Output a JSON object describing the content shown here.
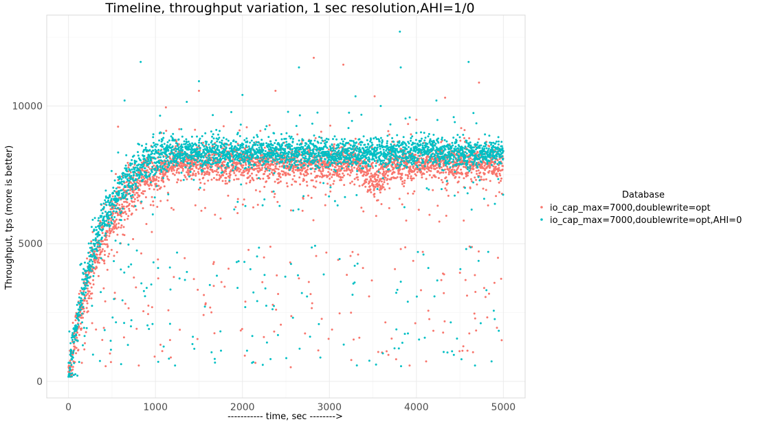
{
  "chart_data": {
    "type": "scatter",
    "title": "Timeline, throughput variation, 1 sec resolution,AHI=1/0",
    "xlabel": "----------- time, sec -------->",
    "ylabel": "Throughput, tps (more is better)",
    "xlim": [
      -250,
      5250
    ],
    "ylim": [
      -600,
      13300
    ],
    "x_ticks": [
      0,
      1000,
      2000,
      3000,
      4000,
      5000
    ],
    "y_ticks": [
      0,
      5000,
      10000
    ],
    "x_tick_labels": [
      "0",
      "1000",
      "2000",
      "3000",
      "4000",
      "5000"
    ],
    "y_tick_labels": [
      "0",
      "5000",
      "10000"
    ],
    "grid": true,
    "legend": {
      "title": "Database",
      "position": "right"
    },
    "series": [
      {
        "name": "io_cap_max=7000,doublewrite=opt",
        "color": "#F8766D",
        "x_range": [
          0,
          5000
        ],
        "model": "ramp from ~300 tps at t=0 to ~7800 tps by t~1200, plateau ~7900 tps with dip to ~7300 around t=3500, sparse outliers 500-5000 and up to ~11700"
      },
      {
        "name": "io_cap_max=7000,doublewrite=opt,AHI=0",
        "color": "#00BFC4",
        "x_range": [
          0,
          5000
        ],
        "model": "ramp from ~300 tps at t=0 to ~8200 tps by t~1100, plateau ~8300 tps, sparse outliers 500-5000 and up to ~12700"
      }
    ],
    "outliers": [
      {
        "series": 1,
        "x": 3810,
        "y": 12700
      },
      {
        "series": 1,
        "x": 3820,
        "y": 11400
      },
      {
        "series": 1,
        "x": 2650,
        "y": 11400
      },
      {
        "series": 1,
        "x": 830,
        "y": 11600
      },
      {
        "series": 1,
        "x": 1500,
        "y": 10900
      },
      {
        "series": 1,
        "x": 4600,
        "y": 11600
      },
      {
        "series": 1,
        "x": 645,
        "y": 10200
      },
      {
        "series": 1,
        "x": 1360,
        "y": 10150
      },
      {
        "series": 1,
        "x": 2000,
        "y": 10400
      },
      {
        "series": 1,
        "x": 3300,
        "y": 10350
      },
      {
        "series": 1,
        "x": 4230,
        "y": 10200
      },
      {
        "series": 1,
        "x": 3590,
        "y": 10000
      },
      {
        "series": 0,
        "x": 2820,
        "y": 11750
      },
      {
        "series": 0,
        "x": 3160,
        "y": 11500
      },
      {
        "series": 0,
        "x": 4720,
        "y": 10850
      },
      {
        "series": 0,
        "x": 1500,
        "y": 10550
      },
      {
        "series": 0,
        "x": 2380,
        "y": 10550
      },
      {
        "series": 0,
        "x": 1120,
        "y": 9950
      },
      {
        "series": 0,
        "x": 3520,
        "y": 10350
      },
      {
        "series": 0,
        "x": 4330,
        "y": 10300
      },
      {
        "series": 0,
        "x": 570,
        "y": 9250
      },
      {
        "series": 0,
        "x": 4000,
        "y": 9500
      }
    ]
  }
}
